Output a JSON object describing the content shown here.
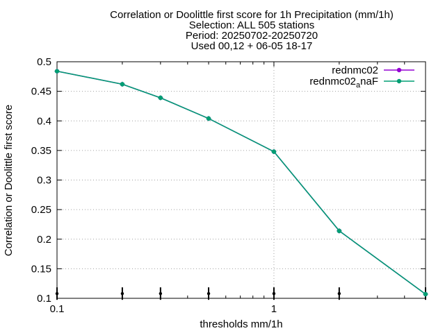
{
  "chart_data": {
    "type": "line",
    "title": [
      "Correlation or Doolittle first score  for 1h Precipitation (mm/1h)",
      "Selection: ALL    505 stations",
      "Period: 20250702-20250720",
      "Used 00,12 + 06-05 18-17"
    ],
    "xlabel": "thresholds mm/1h",
    "ylabel": "Correlation or Doolittle first score",
    "x_scale": "log",
    "xlim": [
      0.1,
      5
    ],
    "ylim": [
      0.1,
      0.5
    ],
    "x_ticks": [
      0.1,
      1
    ],
    "x_tick_labels": [
      "0.1",
      "1"
    ],
    "y_ticks": [
      0.1,
      0.15,
      0.2,
      0.25,
      0.3,
      0.35,
      0.4,
      0.45,
      0.5
    ],
    "y_tick_labels": [
      "0.1",
      "0.15",
      "0.2",
      "0.25",
      "0.3",
      "0.35",
      "0.4",
      "0.45",
      "0.5"
    ],
    "grid": true,
    "legend_position": "top-right",
    "x": [
      0.1,
      0.2,
      0.3,
      0.5,
      1,
      2,
      5
    ],
    "series": [
      {
        "name": "rednmc02",
        "color": "#9400d3",
        "values": [
          0.484,
          0.462,
          0.439,
          0.404,
          0.348,
          0.214,
          0.107
        ]
      },
      {
        "name_base": "rednmc02",
        "name_sub": "a",
        "name_tail": "naF",
        "color": "#009e73",
        "values": [
          0.484,
          0.462,
          0.439,
          0.404,
          0.348,
          0.214,
          0.107
        ]
      }
    ],
    "bottom_markers": {
      "x": [
        0.1,
        0.2,
        0.3,
        0.5,
        1,
        2,
        5
      ],
      "y": 0.108,
      "color": "#000000"
    }
  }
}
